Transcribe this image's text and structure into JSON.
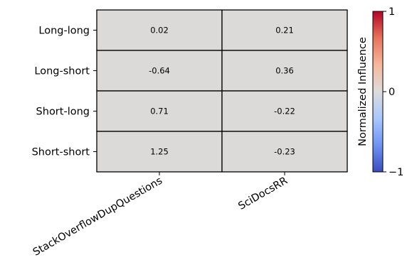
{
  "chart_data": {
    "type": "heatmap",
    "title": "",
    "xlabel": "",
    "ylabel": "",
    "rows": [
      "Long-long",
      "Long-short",
      "Short-long",
      "Short-short"
    ],
    "columns": [
      "StackOverflowDupQuestions",
      "SciDocsRR"
    ],
    "values": [
      [
        0.02,
        0.21
      ],
      [
        -0.64,
        0.36
      ],
      [
        0.71,
        -0.22
      ],
      [
        1.25,
        -0.23
      ]
    ],
    "value_labels": [
      [
        "0.02",
        "0.21"
      ],
      [
        "-0.64",
        "0.36"
      ],
      [
        "0.71",
        "-0.22"
      ],
      [
        "1.25",
        "-0.23"
      ]
    ],
    "cell_color": "#dcdad9",
    "colorbar": {
      "label": "Normalized Influence",
      "range": [
        -1,
        1
      ],
      "ticks": [
        -1,
        0,
        1
      ],
      "tick_labels": [
        "−1",
        "0",
        "1"
      ],
      "colormap": "coolwarm",
      "colormap_stops": [
        "#3b4cc0",
        "#7093f3",
        "#aac7fd",
        "#dddcdc",
        "#f7b89c",
        "#e7745b",
        "#b40426"
      ]
    },
    "grid": false
  }
}
